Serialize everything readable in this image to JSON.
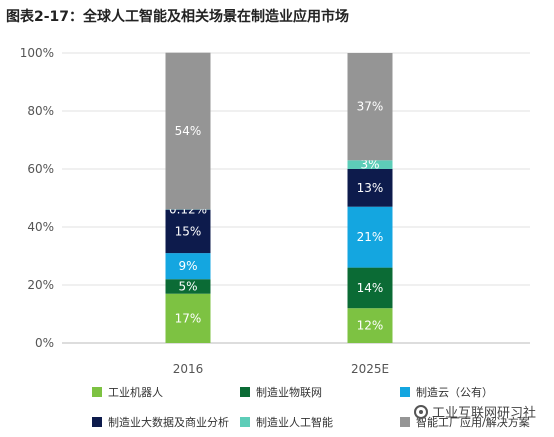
{
  "title": "图表2-17：全球人工智能及相关场景在制造业应用市场",
  "watermark": "工业互联网研习社",
  "chart_data": {
    "type": "bar",
    "stacked": true,
    "categories": [
      "2016",
      "2025E"
    ],
    "yticks": [
      "0%",
      "20%",
      "40%",
      "60%",
      "80%",
      "100%"
    ],
    "ylim": [
      0,
      100
    ],
    "legend_position": "bottom",
    "series": [
      {
        "name": "工业机器人",
        "color": "#7dc242",
        "values": [
          17,
          12
        ],
        "labels": [
          "17%",
          "12%"
        ]
      },
      {
        "name": "制造业物联网",
        "color": "#0b6b35",
        "values": [
          5,
          14
        ],
        "labels": [
          "5%",
          "14%"
        ]
      },
      {
        "name": "制造云（公有）",
        "color": "#14a6e0",
        "values": [
          9,
          21
        ],
        "labels": [
          "9%",
          "21%"
        ]
      },
      {
        "name": "制造业大数据及商业分析",
        "color": "#0d1b4c",
        "values": [
          15,
          13
        ],
        "labels": [
          "15%",
          "13%"
        ]
      },
      {
        "name": "制造业人工智能",
        "color": "#5dcdb8",
        "values": [
          0.12,
          3
        ],
        "labels": [
          "0.12%",
          "3%"
        ]
      },
      {
        "name": "智能工厂应用/解决方案",
        "color": "#959595",
        "values": [
          54,
          37
        ],
        "labels": [
          "54%",
          "37%"
        ]
      }
    ]
  }
}
